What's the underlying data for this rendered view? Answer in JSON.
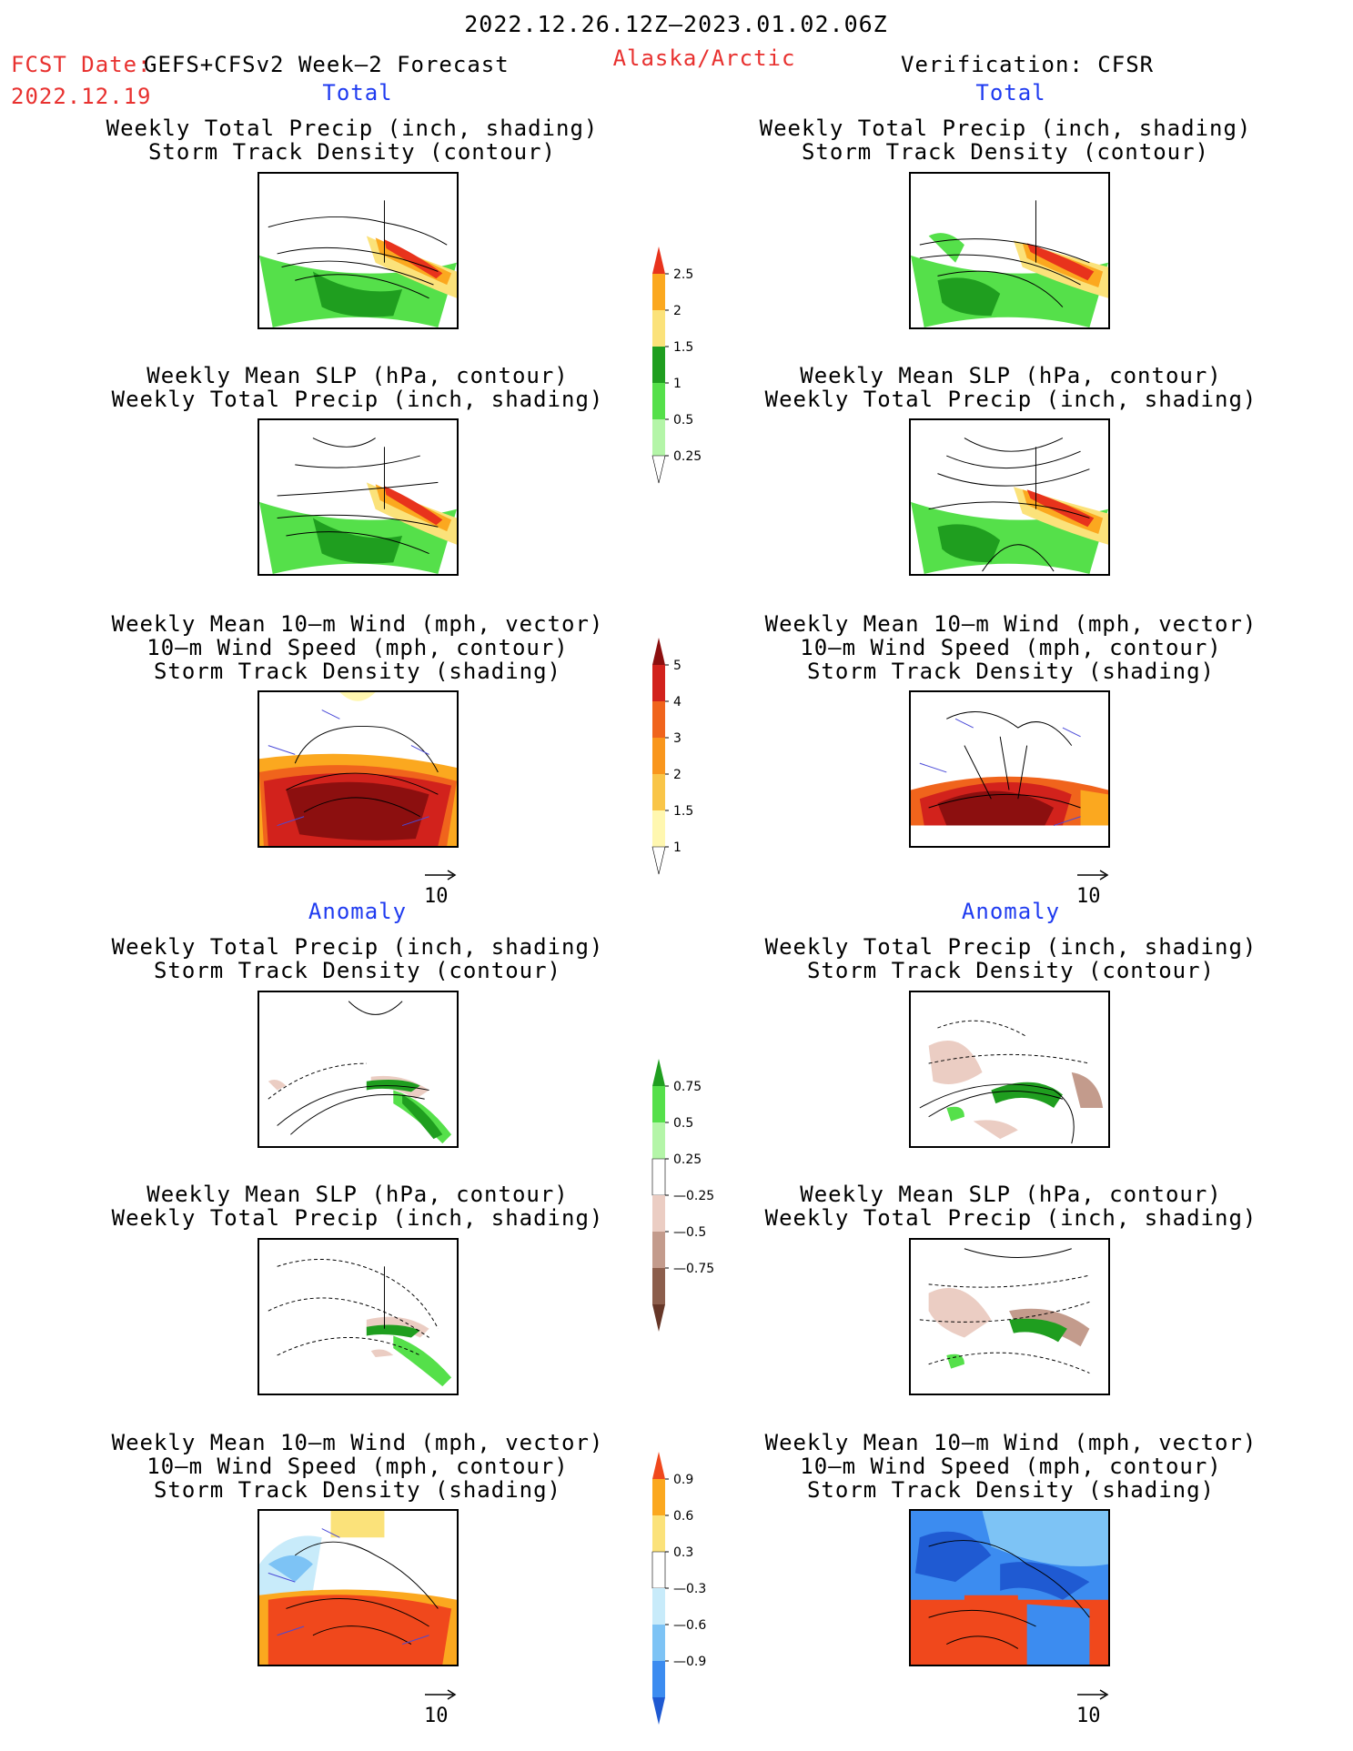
{
  "header": {
    "period": "2022.12.26.12Z—2023.01.02.06Z",
    "fcst_label": "FCST Date:",
    "fcst_model": " GEFS+CFSv2 Week—2 Forecast",
    "fcst_date": "2022.12.19",
    "region": "Alaska/Arctic",
    "verification": "Verification: CFSR"
  },
  "sections": {
    "total": "Total",
    "anomaly": "Anomaly"
  },
  "panel_titles": {
    "precip_storm": [
      "Weekly Total Precip (inch, shading)",
      "Storm Track Density (contour)"
    ],
    "slp_precip": [
      "Weekly Mean SLP (hPa, contour)",
      "Weekly Total Precip (inch, shading)"
    ],
    "wind_storm": [
      "Weekly Mean 10—m Wind (mph, vector)",
      "10—m Wind Speed (mph, contour)",
      "Storm Track Density (shading)"
    ]
  },
  "vector_reference": "10",
  "colorbars": [
    {
      "name": "total-precip",
      "colors": [
        "#ffffff",
        "#b4f5a8",
        "#55e04a",
        "#1f9e1f",
        "#fbe27a",
        "#fba81f",
        "#e8331c"
      ],
      "labels": [
        "0.25",
        "0.5",
        "1",
        "1.5",
        "2",
        "2.5"
      ]
    },
    {
      "name": "total-storm-density",
      "colors": [
        "#ffffff",
        "#fff7b0",
        "#f9c548",
        "#f9961c",
        "#f0641c",
        "#d2221c",
        "#8c0f0f"
      ],
      "labels": [
        "1",
        "1.5",
        "2",
        "3",
        "4",
        "5"
      ]
    },
    {
      "name": "anomaly-precip",
      "colors": [
        "#663728",
        "#8c5e4c",
        "#c39b8c",
        "#ebcdc3",
        "#ffffff",
        "#b4f5a8",
        "#55e04a",
        "#1f9e1f"
      ],
      "labels": [
        "—0.75",
        "—0.5",
        "—0.25",
        "0.25",
        "0.5",
        "0.75"
      ]
    },
    {
      "name": "anomaly-storm-density",
      "colors": [
        "#1f5ad2",
        "#3c8cf0",
        "#7dc3f5",
        "#c8ebfa",
        "#ffffff",
        "#fbe27a",
        "#fba81f",
        "#f0481c"
      ],
      "labels": [
        "—0.9",
        "—0.6",
        "—0.3",
        "0.3",
        "0.6",
        "0.9"
      ]
    }
  ]
}
